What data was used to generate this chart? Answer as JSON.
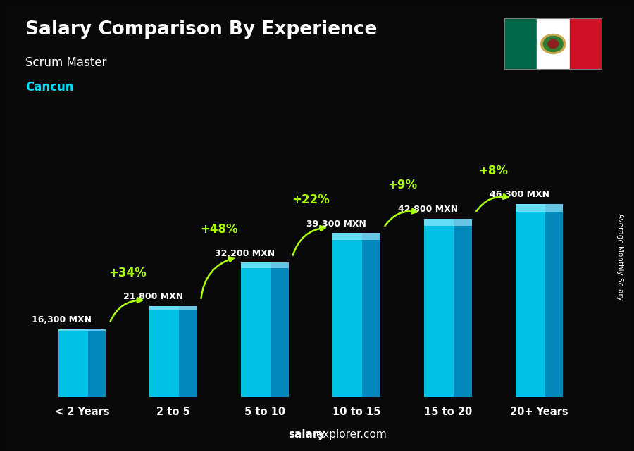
{
  "title": "Salary Comparison By Experience",
  "subtitle": "Scrum Master",
  "city": "Cancun",
  "categories": [
    "< 2 Years",
    "2 to 5",
    "5 to 10",
    "10 to 15",
    "15 to 20",
    "20+ Years"
  ],
  "values": [
    16300,
    21800,
    32200,
    39300,
    42800,
    46300
  ],
  "labels": [
    "16,300 MXN",
    "21,800 MXN",
    "32,200 MXN",
    "39,300 MXN",
    "42,800 MXN",
    "46,300 MXN"
  ],
  "pct_changes": [
    "+34%",
    "+48%",
    "+22%",
    "+9%",
    "+8%"
  ],
  "bar_color_dark": "#0088bb",
  "bar_color_light": "#00ccee",
  "background_color": "#111111",
  "text_color_white": "#ffffff",
  "text_color_cyan": "#00ddff",
  "text_color_green": "#aaff00",
  "ylabel": "Average Monthly Salary",
  "watermark_bold": "salary",
  "watermark_rest": "explorer.com",
  "flag_green": "#006847",
  "flag_white": "#ffffff",
  "flag_red": "#ce1126",
  "arrow_color": "#aaff00"
}
